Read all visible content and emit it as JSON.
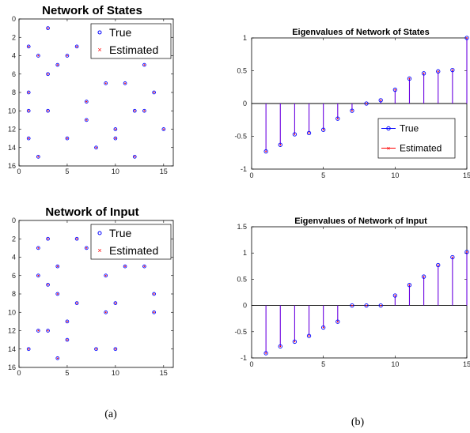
{
  "captions": {
    "a": "(a)",
    "b": "(b)"
  },
  "colors": {
    "true": "#0000ff",
    "estimated": "#ff0000",
    "stem": "#6a00e0",
    "axis": "#000000"
  },
  "chart_data": [
    {
      "type": "scatter",
      "title": "Network of States",
      "xlim": [
        0,
        16
      ],
      "ylim": [
        0,
        16
      ],
      "y_reversed": true,
      "xticks": [
        "0",
        "5",
        "10",
        "15"
      ],
      "yticks": [
        "0",
        "2",
        "4",
        "6",
        "8",
        "10",
        "12",
        "14",
        "16"
      ],
      "legend": [
        "True",
        "Estimated"
      ],
      "legend_position": "top-right",
      "points": [
        [
          3,
          1
        ],
        [
          1,
          3
        ],
        [
          6,
          3
        ],
        [
          2,
          4
        ],
        [
          4,
          5
        ],
        [
          5,
          4
        ],
        [
          3,
          6
        ],
        [
          13,
          5
        ],
        [
          9,
          7
        ],
        [
          11,
          7
        ],
        [
          14,
          8
        ],
        [
          1,
          8
        ],
        [
          7,
          9
        ],
        [
          1,
          10
        ],
        [
          3,
          10
        ],
        [
          12,
          10
        ],
        [
          13,
          10
        ],
        [
          7,
          11
        ],
        [
          10,
          12
        ],
        [
          15,
          12
        ],
        [
          1,
          13
        ],
        [
          5,
          13
        ],
        [
          10,
          13
        ],
        [
          8,
          14
        ],
        [
          2,
          15
        ],
        [
          12,
          15
        ]
      ]
    },
    {
      "type": "scatter",
      "title": "Network of Input",
      "xlim": [
        0,
        16
      ],
      "ylim": [
        0,
        16
      ],
      "y_reversed": true,
      "xticks": [
        "0",
        "5",
        "10",
        "15"
      ],
      "yticks": [
        "0",
        "2",
        "4",
        "6",
        "8",
        "10",
        "12",
        "14",
        "16"
      ],
      "legend": [
        "True",
        "Estimated"
      ],
      "legend_position": "top-right",
      "points": [
        [
          3,
          2
        ],
        [
          6,
          2
        ],
        [
          2,
          3
        ],
        [
          7,
          3
        ],
        [
          4,
          5
        ],
        [
          11,
          5
        ],
        [
          13,
          5
        ],
        [
          2,
          6
        ],
        [
          9,
          6
        ],
        [
          3,
          7
        ],
        [
          4,
          8
        ],
        [
          14,
          8
        ],
        [
          6,
          9
        ],
        [
          10,
          9
        ],
        [
          9,
          10
        ],
        [
          14,
          10
        ],
        [
          5,
          11
        ],
        [
          2,
          12
        ],
        [
          3,
          12
        ],
        [
          5,
          13
        ],
        [
          1,
          14
        ],
        [
          8,
          14
        ],
        [
          10,
          14
        ],
        [
          4,
          15
        ]
      ]
    },
    {
      "type": "stem",
      "title": "Eigenvalues of Network of States",
      "xlim": [
        0,
        15
      ],
      "ylim": [
        -1,
        1
      ],
      "xticks": [
        "0",
        "5",
        "10",
        "15"
      ],
      "yticks": [
        "-1",
        "-0.5",
        "0",
        "0.5",
        "1"
      ],
      "legend": [
        "True",
        "Estimated"
      ],
      "legend_position": "bottom-right",
      "x": [
        1,
        2,
        3,
        4,
        5,
        6,
        7,
        8,
        9,
        10,
        11,
        12,
        13,
        14,
        15
      ],
      "values": [
        -0.73,
        -0.63,
        -0.47,
        -0.45,
        -0.4,
        -0.23,
        -0.11,
        0.0,
        0.05,
        0.21,
        0.38,
        0.46,
        0.49,
        0.51,
        1.0
      ]
    },
    {
      "type": "stem",
      "title": "Eigenvalues of Network of Input",
      "xlim": [
        0,
        15
      ],
      "ylim": [
        -1,
        1.5
      ],
      "xticks": [
        "0",
        "5",
        "10",
        "15"
      ],
      "yticks": [
        "-1",
        "-0.5",
        "0",
        "0.5",
        "1",
        "1.5"
      ],
      "x": [
        1,
        2,
        3,
        4,
        5,
        6,
        7,
        8,
        9,
        10,
        11,
        12,
        13,
        14,
        15
      ],
      "values": [
        -0.91,
        -0.78,
        -0.69,
        -0.58,
        -0.42,
        -0.31,
        0.0,
        0.0,
        0.0,
        0.19,
        0.39,
        0.55,
        0.77,
        0.92,
        1.02
      ]
    }
  ]
}
